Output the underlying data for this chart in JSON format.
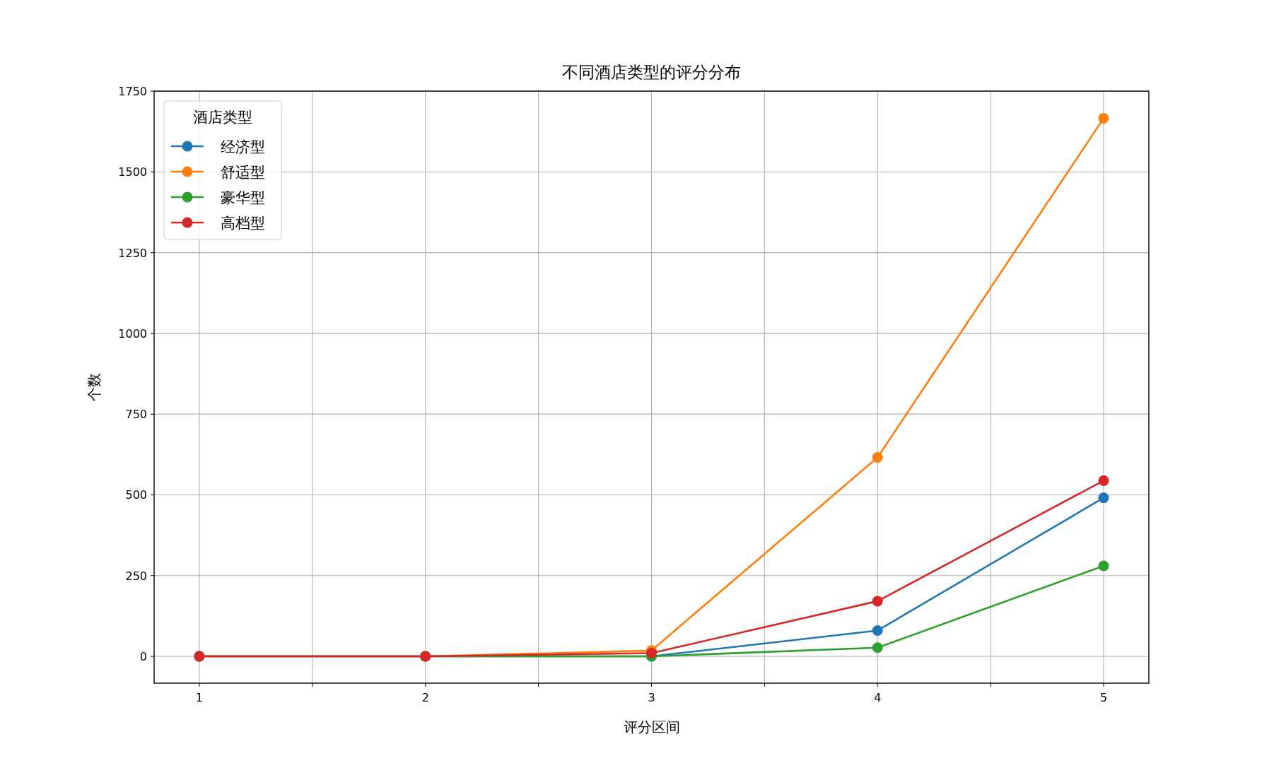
{
  "chart_data": {
    "type": "line",
    "title": "不同酒店类型的评分分布",
    "xlabel": "评分区间",
    "ylabel": "个数",
    "legend_title": "酒店类型",
    "x": [
      1,
      2,
      3,
      4,
      5
    ],
    "series": [
      {
        "name": "经济型",
        "color": "#1f77b4",
        "values": [
          0,
          0,
          0,
          80,
          491
        ]
      },
      {
        "name": "舒适型",
        "color": "#ff7f0e",
        "values": [
          0,
          0,
          18,
          616,
          1666
        ]
      },
      {
        "name": "豪华型",
        "color": "#2ca02c",
        "values": [
          0,
          0,
          0,
          27,
          280
        ]
      },
      {
        "name": "高档型",
        "color": "#d62728",
        "values": [
          0,
          0,
          10,
          171,
          544
        ]
      }
    ],
    "xlim": [
      0.8,
      5.2
    ],
    "ylim": [
      -83,
      1750
    ],
    "xticks": [
      1,
      {
        "value": 1.5,
        "label": null
      },
      2,
      {
        "value": 2.5,
        "label": null
      },
      3,
      {
        "value": 3.5,
        "label": null
      },
      4,
      {
        "value": 4.5,
        "label": null
      },
      5
    ],
    "yticks": [
      0,
      250,
      500,
      750,
      1000,
      1250,
      1500,
      1750
    ],
    "grid": true,
    "legend": "top left",
    "marker": "circle",
    "line_style": "solid"
  }
}
